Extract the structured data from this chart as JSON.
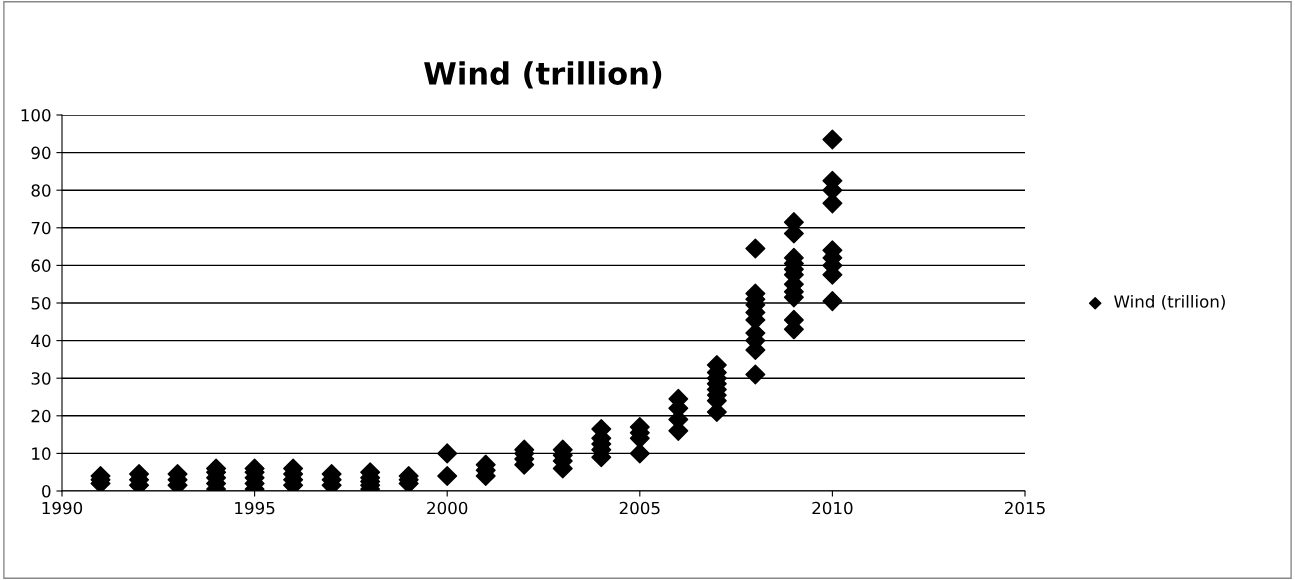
{
  "chart_data": {
    "type": "scatter",
    "title": "Wind (trillion)",
    "series": [
      {
        "name": "Wind (trillion)",
        "color": "#000000",
        "x": [
          1991,
          1991,
          1991,
          1992,
          1992,
          1992,
          1993,
          1993,
          1993,
          1994,
          1994,
          1994,
          1994,
          1994,
          1995,
          1995,
          1995,
          1995,
          1995,
          1996,
          1996,
          1996,
          1996,
          1997,
          1997,
          1997,
          1998,
          1998,
          1998,
          1998,
          1998,
          1999,
          1999,
          1999,
          2000,
          2000,
          2001,
          2001,
          2001,
          2002,
          2002,
          2002,
          2002,
          2003,
          2003,
          2003,
          2003,
          2004,
          2004,
          2004,
          2004,
          2004,
          2005,
          2005,
          2005,
          2005,
          2006,
          2006,
          2006,
          2006,
          2007,
          2007,
          2007,
          2007,
          2007,
          2007,
          2007,
          2007,
          2008,
          2008,
          2008,
          2008,
          2008,
          2008,
          2008,
          2008,
          2008,
          2008,
          2009,
          2009,
          2009,
          2009,
          2009,
          2009,
          2009,
          2009,
          2009,
          2009,
          2009,
          2010,
          2010,
          2010,
          2010,
          2010,
          2010,
          2010,
          2010,
          2010
        ],
        "values": [
          2,
          3,
          4,
          1.5,
          3,
          4.5,
          1.5,
          3,
          4.5,
          0.5,
          2,
          3.5,
          5,
          6,
          0.5,
          2,
          3.5,
          5,
          6,
          1.5,
          3,
          4.5,
          6,
          1.5,
          3,
          4.5,
          0.5,
          1.5,
          2.5,
          3.5,
          5,
          2,
          3,
          4,
          4,
          10,
          4,
          5.5,
          7,
          7,
          8.5,
          10,
          11,
          6,
          8,
          9.5,
          11,
          9,
          11,
          12.5,
          14,
          16.5,
          10,
          14,
          15.5,
          17,
          16,
          19,
          22,
          24.5,
          21,
          24,
          25.5,
          27,
          28.5,
          30,
          31.5,
          33.5,
          31,
          37.5,
          40,
          42,
          45.5,
          47.5,
          49.5,
          51,
          52.5,
          64.5,
          43,
          45.5,
          51.5,
          53,
          55,
          57.5,
          59,
          60.5,
          62,
          68.5,
          71.5,
          50.5,
          57.5,
          60,
          62,
          64,
          76.5,
          80,
          82.5,
          93.5
        ]
      }
    ],
    "xlim": [
      1990,
      2015
    ],
    "xticks": [
      1990,
      1995,
      2000,
      2005,
      2010,
      2015
    ],
    "ylim": [
      0,
      100
    ],
    "yticks": [
      0,
      10,
      20,
      30,
      40,
      50,
      60,
      70,
      80,
      90,
      100
    ],
    "grid": "y",
    "legend": "right",
    "marker": "diamond"
  }
}
